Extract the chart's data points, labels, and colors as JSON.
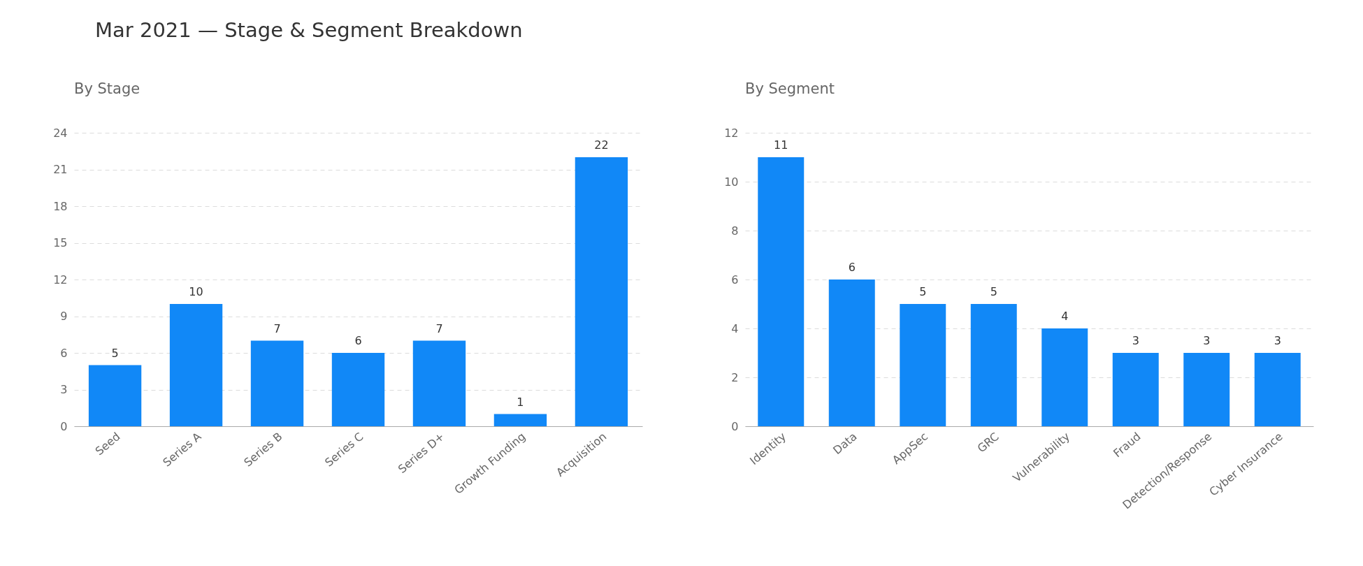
{
  "chart_data": [
    {
      "type": "bar",
      "title": "Mar 2021 — Stage & Segment Breakdown",
      "subtitle": "By Stage",
      "categories": [
        "Seed",
        "Series A",
        "Series B",
        "Series C",
        "Series D+",
        "Growth Funding",
        "Acquisition"
      ],
      "values": [
        5,
        10,
        7,
        6,
        7,
        1,
        22
      ],
      "color": "#1188f7",
      "ylim": [
        0,
        24
      ],
      "yticks": [
        0,
        3,
        6,
        9,
        12,
        15,
        18,
        21,
        24
      ],
      "grid": "y",
      "data_labels": true
    },
    {
      "type": "bar",
      "subtitle": "By Segment",
      "categories": [
        "Identity",
        "Data",
        "AppSec",
        "GRC",
        "Vulnerability",
        "Fraud",
        "Detection/Response",
        "Cyber Insurance"
      ],
      "values": [
        11,
        6,
        5,
        5,
        4,
        3,
        3,
        3
      ],
      "color": "#1188f7",
      "ylim": [
        0,
        12
      ],
      "yticks": [
        0,
        2,
        4,
        6,
        8,
        10,
        12
      ],
      "grid": "y",
      "data_labels": true
    }
  ]
}
